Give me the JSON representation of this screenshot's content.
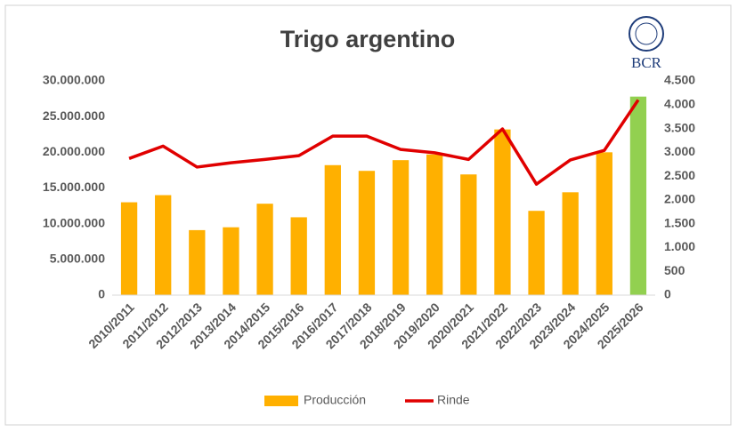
{
  "chart_data": {
    "type": "bar_line",
    "title": "Trigo argentino",
    "logo_text": "BCR",
    "categories": [
      "2010/2011",
      "2011/2012",
      "2012/2013",
      "2013/2014",
      "2014/2015",
      "2015/2016",
      "2016/2017",
      "2017/2018",
      "2018/2019",
      "2019/2020",
      "2020/2021",
      "2021/2022",
      "2022/2023",
      "2023/2024",
      "2024/2025",
      "2025/2026"
    ],
    "series": [
      {
        "name": "Producción",
        "color": "#ffb000",
        "colors": [
          "#ffb000",
          "#ffb000",
          "#ffb000",
          "#ffb000",
          "#ffb000",
          "#ffb000",
          "#ffb000",
          "#ffb000",
          "#ffb000",
          "#ffb000",
          "#ffb000",
          "#ffb000",
          "#ffb000",
          "#ffb000",
          "#ffb000",
          "#92d050"
        ],
        "values": [
          13000000,
          14000000,
          9100000,
          9500000,
          12800000,
          10900000,
          18200000,
          17400000,
          18900000,
          19700000,
          16900000,
          23200000,
          11800000,
          14400000,
          20000000,
          27800000
        ]
      },
      {
        "name": "Rinde",
        "color": "#e00000",
        "axis": "y2",
        "values": [
          2870,
          3130,
          2690,
          2780,
          2850,
          2930,
          3340,
          3340,
          3060,
          2990,
          2850,
          3490,
          2330,
          2840,
          3040,
          4100
        ]
      }
    ],
    "ylim": [
      0,
      30000000
    ],
    "yticks": [
      0,
      {
        "value": 5000000,
        "label": "5.000.000"
      },
      {
        "value": 10000000,
        "label": "10.000.000"
      },
      {
        "value": 15000000,
        "label": "15.000.000"
      },
      {
        "value": 20000000,
        "label": "20.000.000"
      },
      {
        "value": 25000000,
        "label": "25.000.000"
      },
      {
        "value": 30000000,
        "label": "30.000.000"
      }
    ],
    "y2lim": [
      0,
      4500
    ],
    "y2ticks": [
      0,
      500,
      {
        "value": 1000,
        "label": "1.000"
      },
      {
        "value": 1500,
        "label": "1.500"
      },
      {
        "value": 2000,
        "label": "2.000"
      },
      {
        "value": 2500,
        "label": "2.500"
      },
      {
        "value": 3000,
        "label": "3.000"
      },
      {
        "value": 3500,
        "label": "3.500"
      },
      {
        "value": 4000,
        "label": "4.000"
      },
      {
        "value": 4500,
        "label": "4.500"
      }
    ],
    "legend": "bottom"
  }
}
